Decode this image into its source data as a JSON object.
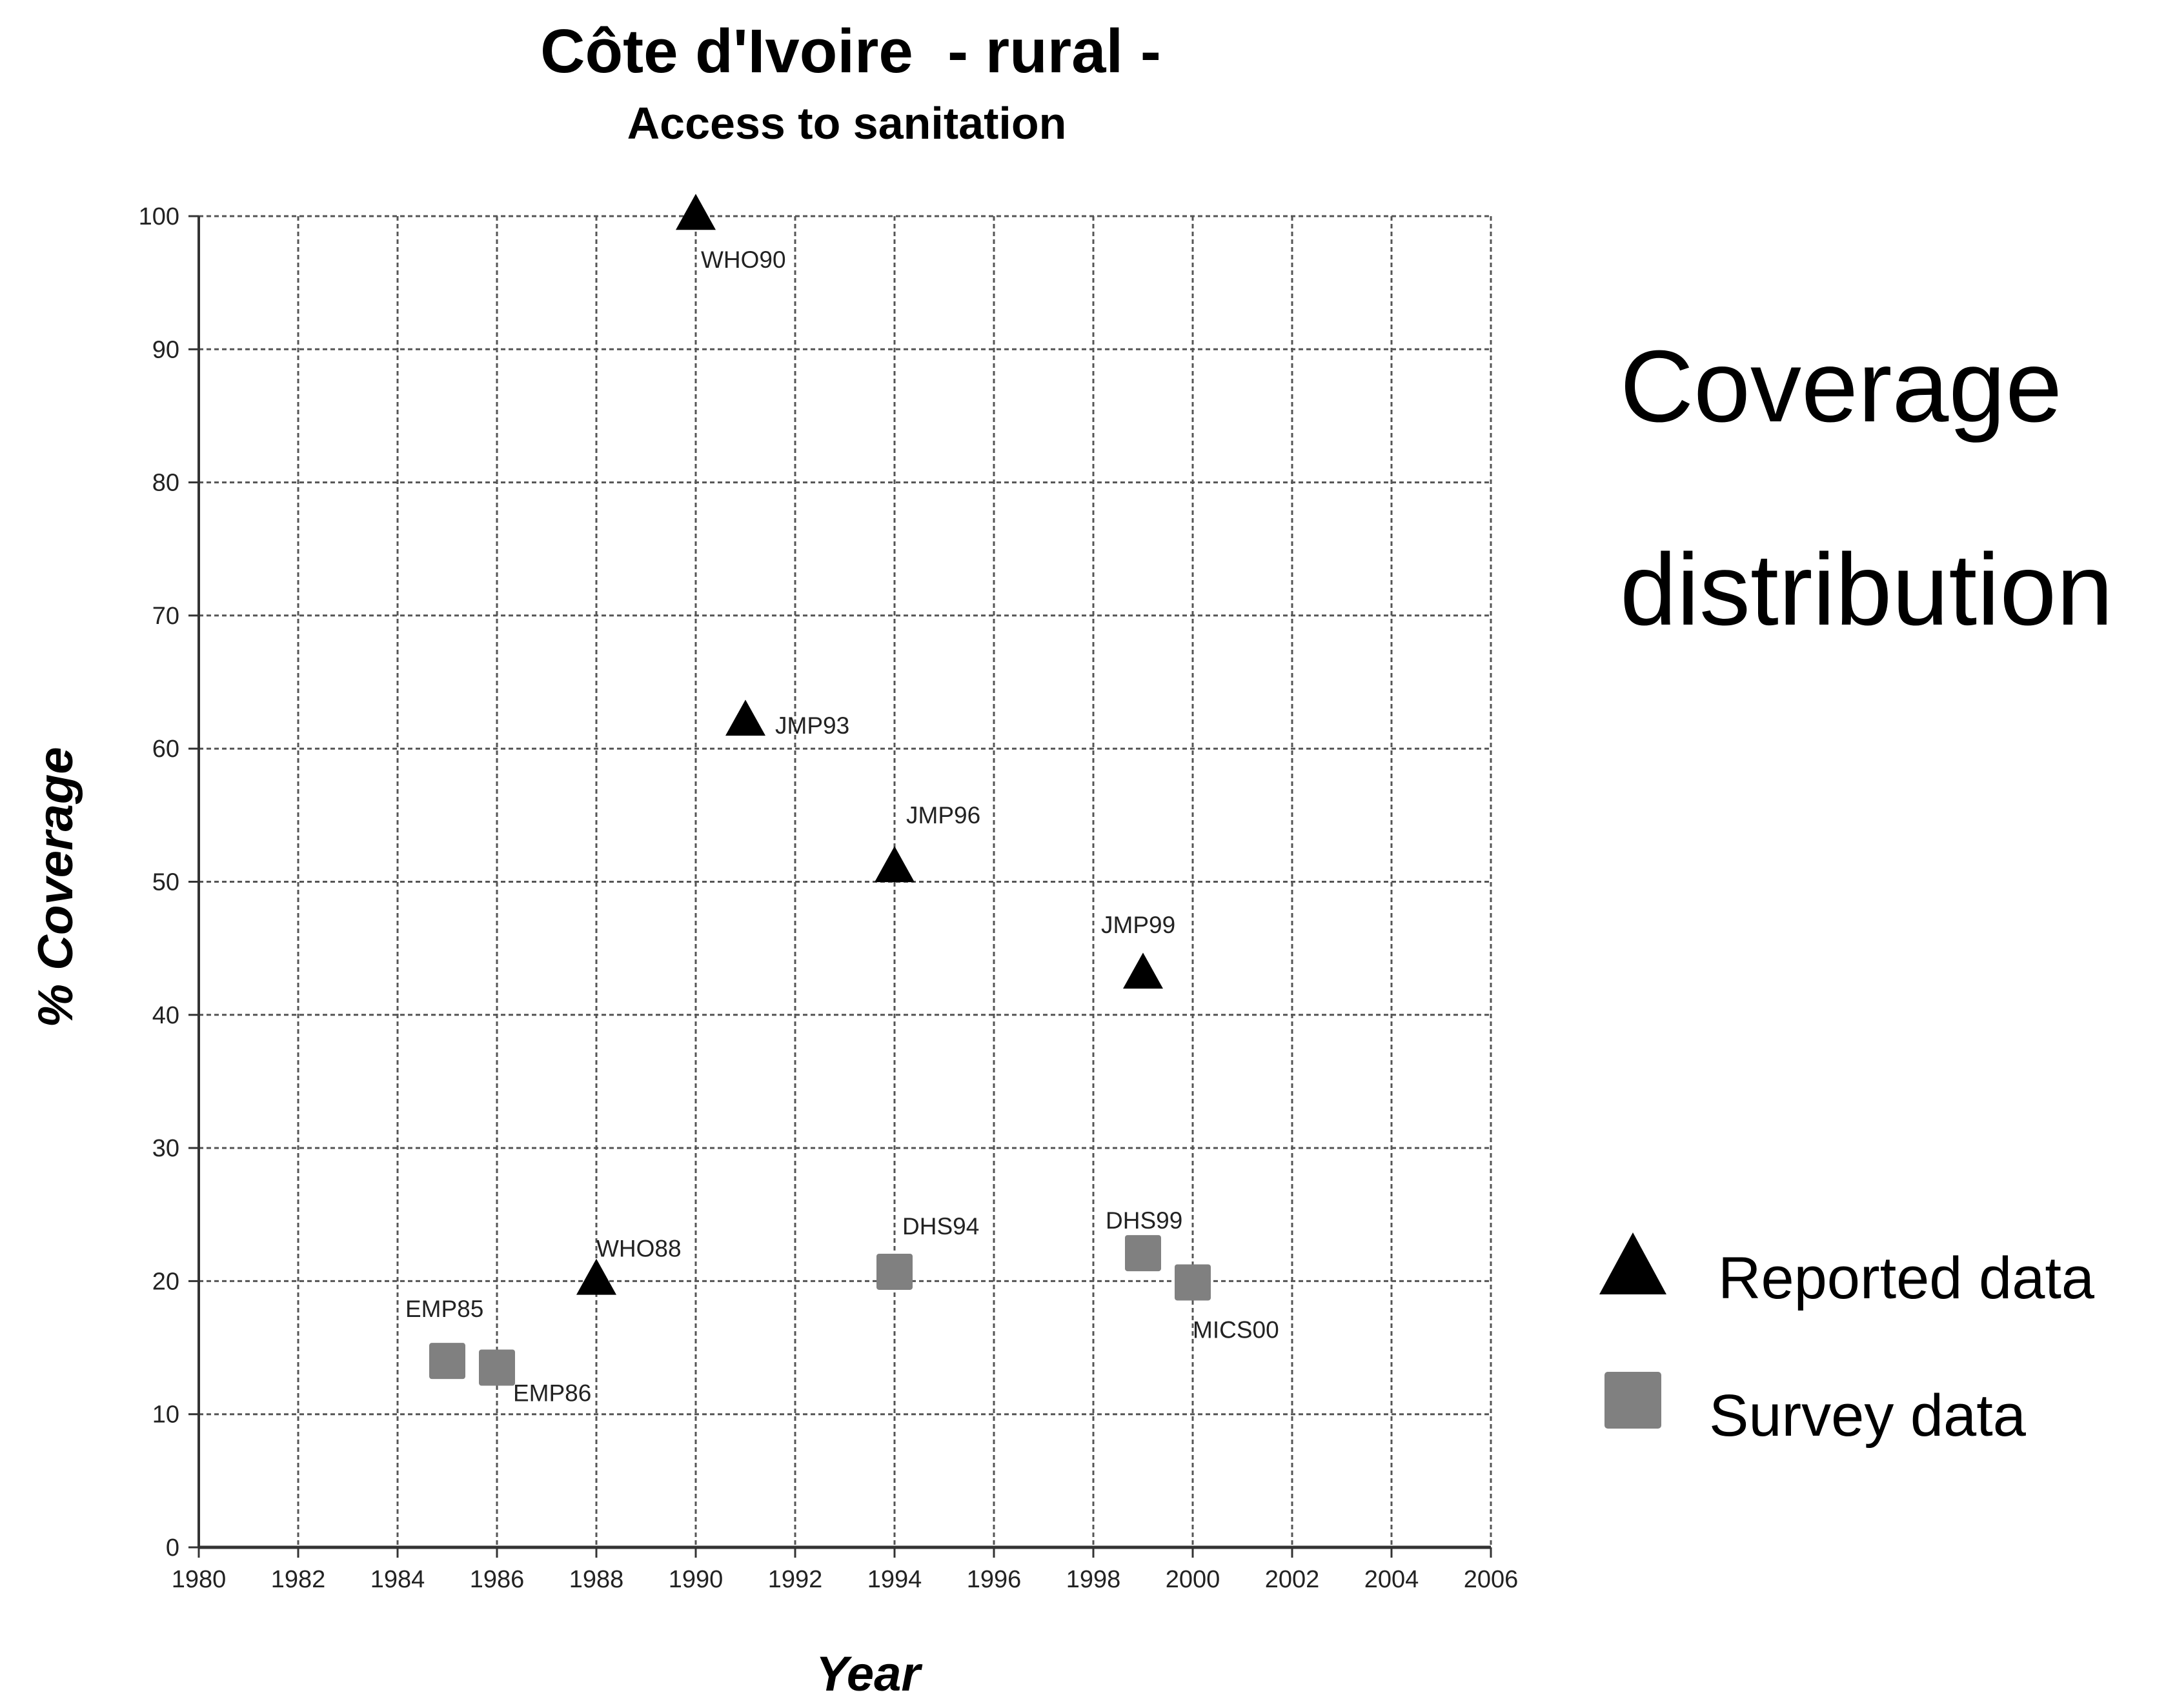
{
  "chart_data": {
    "type": "scatter",
    "title": "Côte d'Ivoire  - rural -",
    "subtitle": "Access to sanitation",
    "xlabel": "Year",
    "ylabel": "% Coverage",
    "xlim": [
      1980,
      2006
    ],
    "ylim": [
      0,
      100
    ],
    "x_ticks": [
      "1980",
      "1982",
      "1984",
      "1986",
      "1988",
      "1990",
      "1992",
      "1994",
      "1996",
      "1998",
      "2000",
      "2002",
      "2004",
      "2006"
    ],
    "y_ticks": [
      "0",
      "10",
      "20",
      "30",
      "40",
      "50",
      "60",
      "70",
      "80",
      "90",
      "100"
    ],
    "grid": true,
    "legend_placement": "right",
    "series": [
      {
        "name": "Reported data",
        "marker": "triangle",
        "color": "#000000",
        "points": [
          {
            "x": 1988,
            "y": 20,
            "label": "WHO88"
          },
          {
            "x": 1990,
            "y": 100,
            "label": "WHO90"
          },
          {
            "x": 1991,
            "y": 62,
            "label": "JMP93"
          },
          {
            "x": 1994,
            "y": 51,
            "label": "JMP96"
          },
          {
            "x": 1999,
            "y": 43,
            "label": "JMP99"
          }
        ]
      },
      {
        "name": "Survey data",
        "marker": "square",
        "color": "#808080",
        "points": [
          {
            "x": 1985,
            "y": 14,
            "label": "EMP85"
          },
          {
            "x": 1986,
            "y": 13.5,
            "label": "EMP86"
          },
          {
            "x": 1994,
            "y": 20.7,
            "label": "DHS94"
          },
          {
            "x": 1999,
            "y": 22.1,
            "label": "DHS99"
          },
          {
            "x": 2000,
            "y": 19.9,
            "label": "MICS00"
          }
        ]
      }
    ]
  },
  "side_heading": {
    "line1": "Coverage",
    "line2": "distribution"
  }
}
